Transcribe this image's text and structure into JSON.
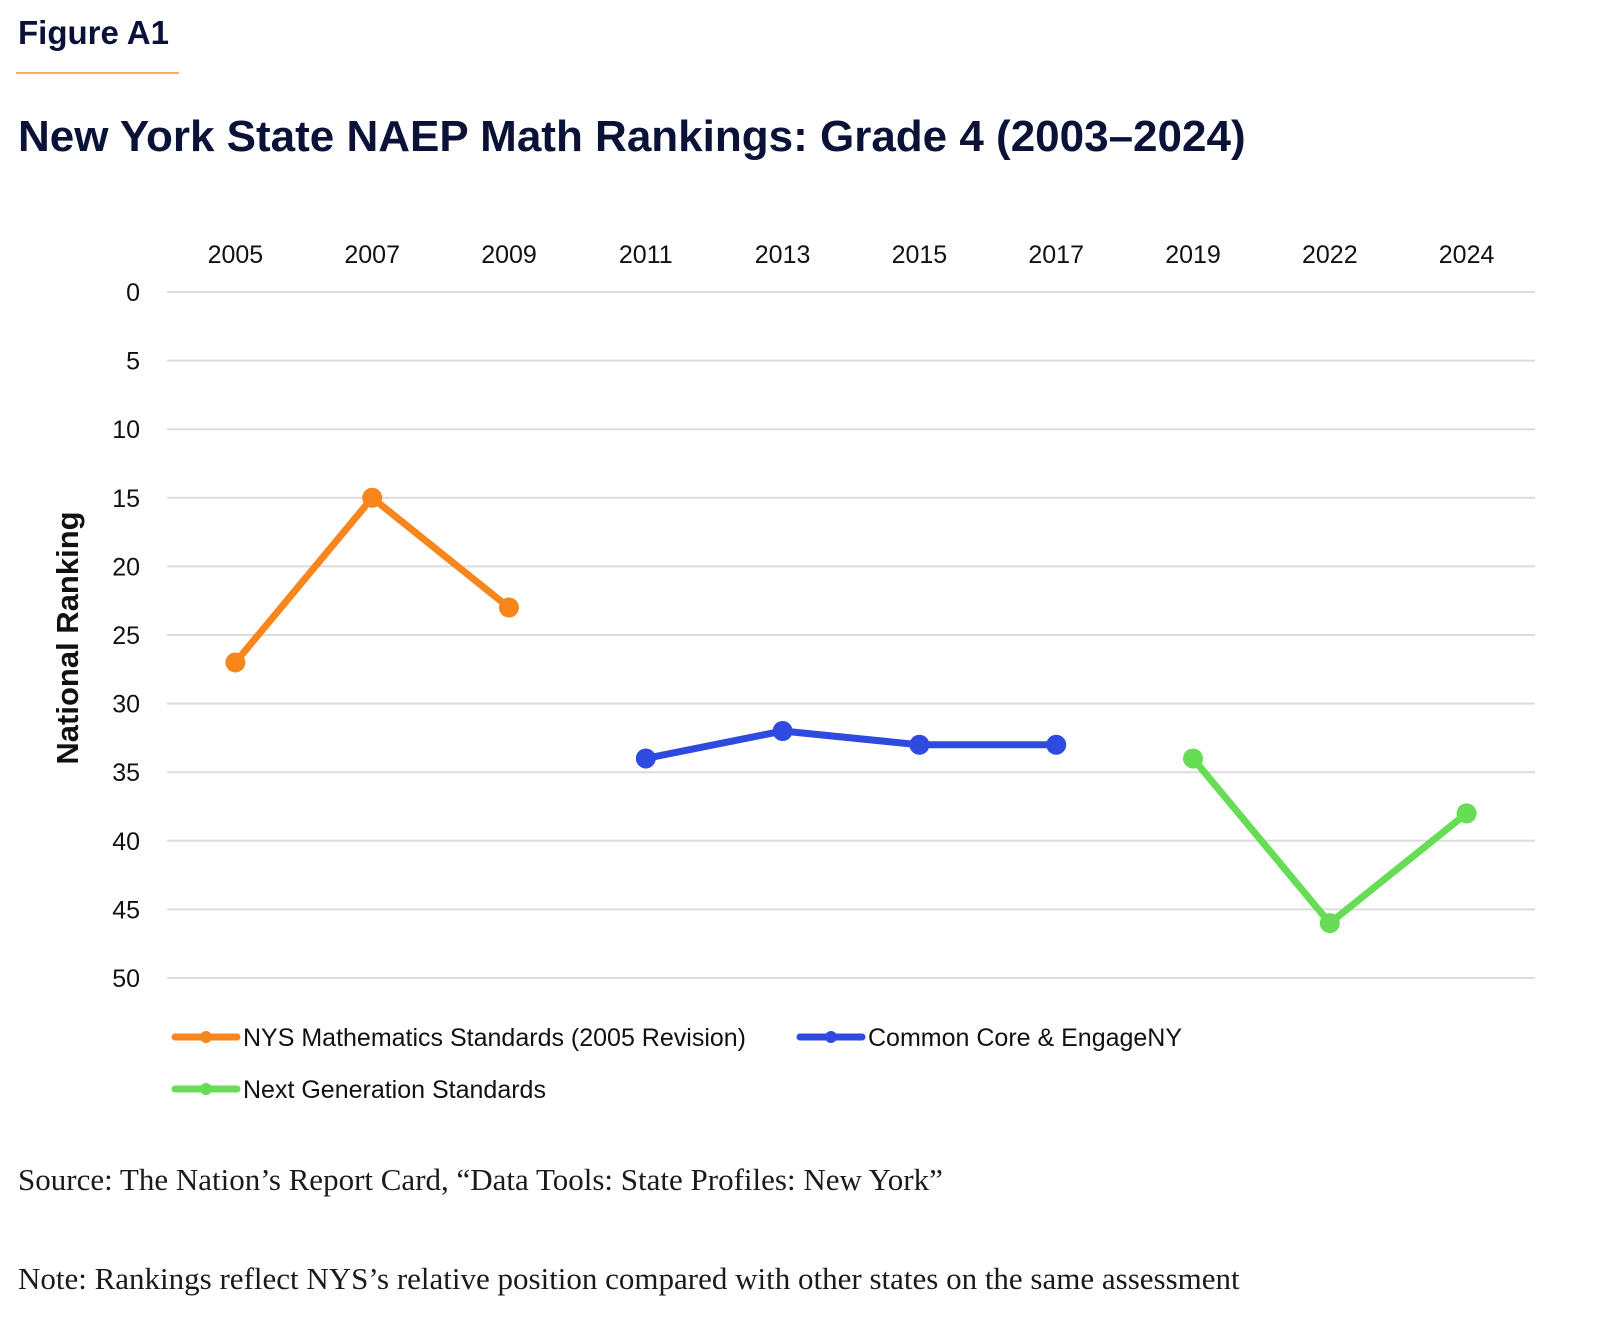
{
  "figure_label": "Figure A1",
  "title": "New York State NAEP Math Rankings: Grade 4 (2003–2024)",
  "chart_data": {
    "type": "line",
    "categories": [
      "2005",
      "2007",
      "2009",
      "2011",
      "2013",
      "2015",
      "2017",
      "2019",
      "2022",
      "2024"
    ],
    "ylabel": "National Ranking",
    "ylim": [
      0,
      50
    ],
    "y_inverted": true,
    "yticks": [
      0,
      5,
      10,
      15,
      20,
      25,
      30,
      35,
      40,
      45,
      50
    ],
    "xaxis_position": "top",
    "grid": true,
    "legend_position": "bottom-left",
    "series": [
      {
        "name": "NYS Mathematics Standards (2005 Revision)",
        "color": "#f7861c",
        "values": [
          27,
          15,
          23,
          null,
          null,
          null,
          null,
          null,
          null,
          null
        ]
      },
      {
        "name": "Common Core & EngageNY",
        "color": "#2f4adf",
        "values": [
          null,
          null,
          null,
          34,
          32,
          33,
          33,
          null,
          null,
          null
        ]
      },
      {
        "name": "Next Generation Standards",
        "color": "#66dd55",
        "values": [
          null,
          null,
          null,
          null,
          null,
          null,
          null,
          34,
          46,
          38
        ]
      }
    ]
  },
  "source": "Source: The Nation’s Report Card, “Data Tools: State Profiles: New York”",
  "note": "Note: Rankings reflect NYS’s relative position compared with other states on the same assessment"
}
